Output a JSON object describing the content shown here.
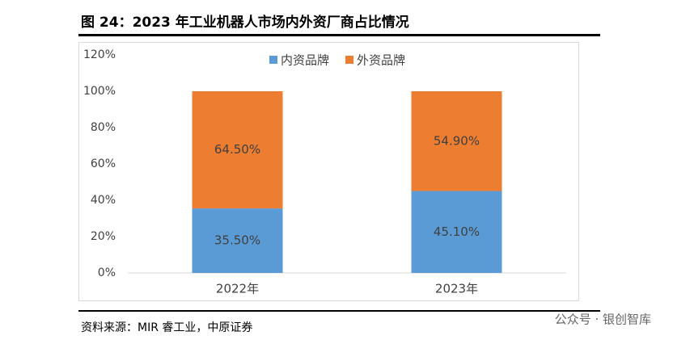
{
  "chart_data": {
    "type": "stacked_bar",
    "title": "图 24：2023 年工业机器人市场内外资厂商占比情况",
    "categories": [
      "2022年",
      "2023年"
    ],
    "series": [
      {
        "name": "内资品牌",
        "color": "#5b9bd5",
        "values": [
          35.5,
          45.1
        ],
        "value_labels": [
          "35.50%",
          "45.10%"
        ]
      },
      {
        "name": "外资品牌",
        "color": "#ed7d31",
        "values": [
          64.5,
          54.9
        ],
        "value_labels": [
          "64.50%",
          "54.90%"
        ]
      }
    ],
    "ylim": [
      0,
      120
    ],
    "yticks": [
      {
        "value": 0,
        "label": "0%"
      },
      {
        "value": 20,
        "label": "20%"
      },
      {
        "value": 40,
        "label": "40%"
      },
      {
        "value": 60,
        "label": "60%"
      },
      {
        "value": 80,
        "label": "80%"
      },
      {
        "value": 100,
        "label": "100%"
      },
      {
        "value": 120,
        "label": "120%"
      }
    ],
    "grid": false,
    "legend": "top",
    "source": "资料来源：MIR 睿工业，中原证券",
    "watermark": "公众号 · 银创智库"
  }
}
